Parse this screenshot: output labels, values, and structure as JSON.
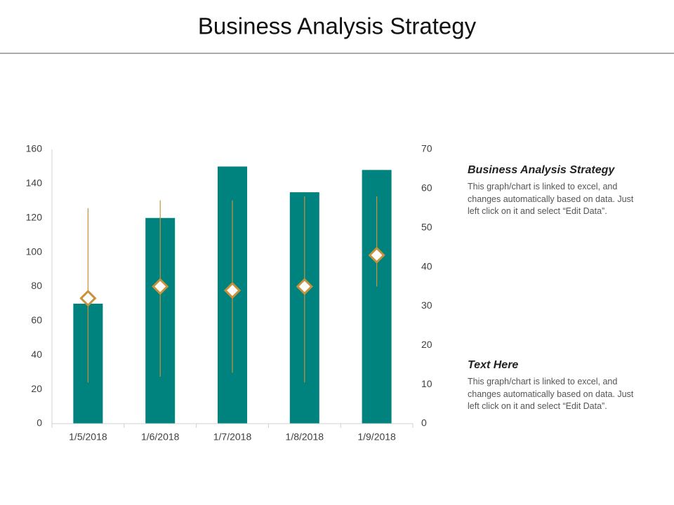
{
  "title": "Business Analysis Strategy",
  "chart_data": {
    "type": "combo",
    "categories": [
      "1/5/2018",
      "1/6/2018",
      "1/7/2018",
      "1/8/2018",
      "1/9/2018"
    ],
    "series": [
      {
        "type": "bar",
        "color": "#00827f",
        "values": [
          70,
          120,
          150,
          135,
          148
        ]
      },
      {
        "type": "hilo",
        "axis": "y2",
        "color": "#c8923a",
        "high": [
          55,
          57,
          57,
          58,
          58
        ],
        "low": [
          10.5,
          12,
          13,
          10.5,
          35
        ],
        "values": [
          32,
          35,
          34,
          35,
          43
        ]
      }
    ],
    "ylim": [
      0,
      160
    ],
    "yticks": [
      0,
      20,
      40,
      60,
      80,
      100,
      120,
      140,
      160
    ],
    "y2lim": [
      0,
      70
    ],
    "y2ticks": [
      0,
      10,
      20,
      30,
      40,
      50,
      60,
      70
    ]
  },
  "notes": [
    {
      "heading": "Business Analysis Strategy",
      "body": "This graph/chart is linked to excel, and changes automatically based on data. Just left click on it and select “Edit Data”."
    },
    {
      "heading": "Text Here",
      "body": "This graph/chart is linked to excel, and changes automatically based on data. Just left click on it and select “Edit Data”."
    }
  ]
}
